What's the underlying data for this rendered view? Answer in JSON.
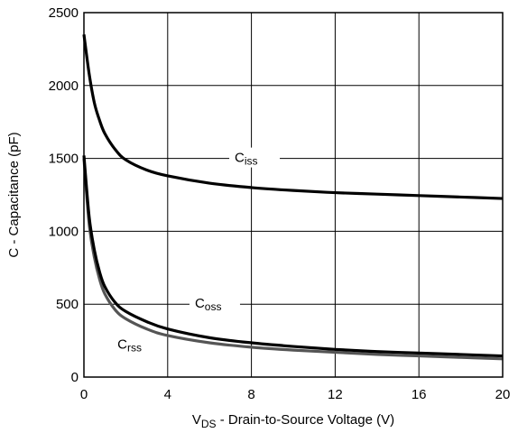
{
  "chart_data": {
    "type": "line",
    "title": "",
    "xlabel": {
      "main": "V",
      "sub": "DS",
      "rest": " - Drain-to-Source Voltage (V)"
    },
    "ylabel": "C - Capacitance (pF)",
    "xlim": [
      0,
      20
    ],
    "ylim": [
      0,
      2500
    ],
    "xticks": [
      0,
      4,
      8,
      12,
      16,
      20
    ],
    "xtick_labels": [
      "0",
      "4",
      "8",
      "12",
      "16",
      "20"
    ],
    "yticks": [
      0,
      500,
      1000,
      1500,
      2000,
      2500
    ],
    "ytick_labels": [
      "0",
      "500",
      "1000",
      "1500",
      "2000",
      "2500"
    ],
    "grid": true,
    "series": [
      {
        "name": "Ciss",
        "label": {
          "main": "C",
          "sub": "iss"
        },
        "color": "#000000",
        "x": [
          0,
          0.25,
          0.5,
          0.75,
          1,
          1.5,
          2,
          3,
          4,
          6,
          8,
          10,
          12,
          14,
          16,
          18,
          20
        ],
        "y": [
          2350,
          2080,
          1880,
          1760,
          1670,
          1560,
          1490,
          1420,
          1380,
          1330,
          1300,
          1280,
          1265,
          1255,
          1245,
          1235,
          1225
        ]
      },
      {
        "name": "Coss",
        "label": {
          "main": "C",
          "sub": "oss"
        },
        "color": "#000000",
        "x": [
          0,
          0.25,
          0.5,
          0.75,
          1,
          1.5,
          2,
          3,
          4,
          6,
          8,
          10,
          12,
          14,
          16,
          18,
          20
        ],
        "y": [
          1520,
          1100,
          870,
          720,
          620,
          510,
          450,
          380,
          330,
          270,
          235,
          210,
          190,
          175,
          165,
          155,
          145
        ]
      },
      {
        "name": "Crss",
        "label": {
          "main": "C",
          "sub": "rss"
        },
        "color": "#555555",
        "x": [
          0,
          0.25,
          0.5,
          0.75,
          1,
          1.5,
          2,
          3,
          4,
          6,
          8,
          10,
          12,
          14,
          16,
          18,
          20
        ],
        "y": [
          1500,
          1050,
          820,
          670,
          570,
          460,
          400,
          330,
          285,
          235,
          205,
          185,
          170,
          155,
          145,
          135,
          125
        ]
      }
    ]
  }
}
